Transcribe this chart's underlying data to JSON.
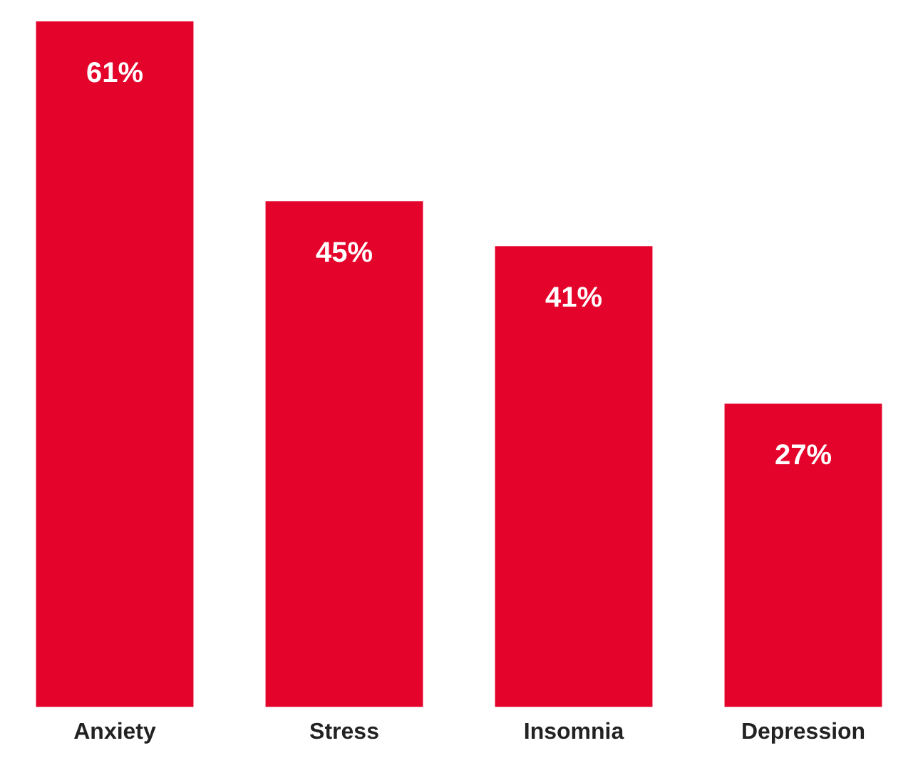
{
  "chart_data": {
    "type": "bar",
    "categories": [
      "Anxiety",
      "Stress",
      "Insomnia",
      "Depression"
    ],
    "values": [
      61,
      45,
      41,
      27
    ],
    "value_labels": [
      "61%",
      "45%",
      "41%",
      "27%"
    ],
    "color": "#e4032a",
    "grid": false,
    "legend": false
  }
}
